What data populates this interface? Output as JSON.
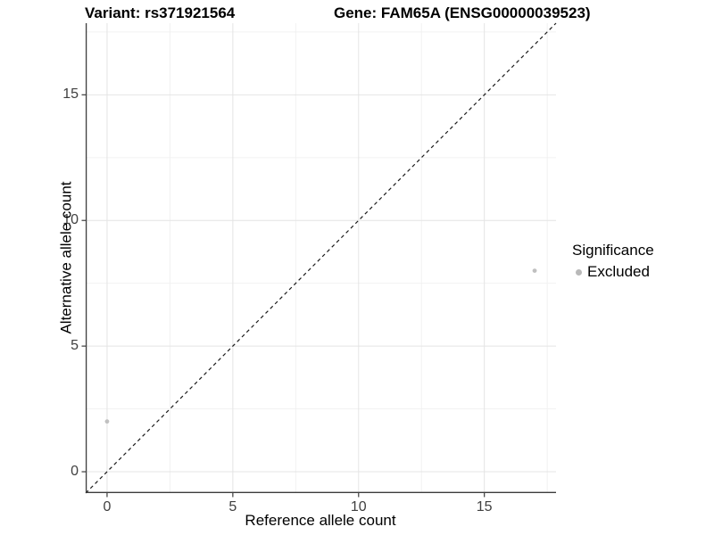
{
  "chart_data": {
    "type": "scatter",
    "titles": {
      "left": "Variant: rs371921564",
      "right": "Gene: FAM65A (ENSG00000039523)"
    },
    "xlabel": "Reference allele count",
    "ylabel": "Alternative allele count",
    "xlim": [
      -0.85,
      17.85
    ],
    "ylim": [
      -0.85,
      17.85
    ],
    "xticks": [
      0,
      5,
      10,
      15
    ],
    "yticks": [
      0,
      5,
      10,
      15
    ],
    "xminor": [
      2.5,
      7.5,
      12.5,
      17.5
    ],
    "yminor": [
      2.5,
      7.5,
      12.5,
      17.5
    ],
    "grid": "major+minor",
    "points": [
      {
        "x": 0,
        "y": 2,
        "series": "Excluded"
      },
      {
        "x": 17,
        "y": 8,
        "series": "Excluded"
      }
    ],
    "reference_line": {
      "slope": 1,
      "intercept": 0,
      "style": "dashed"
    },
    "legend": {
      "title": "Significance",
      "position": "right",
      "entries": [
        {
          "label": "Excluded",
          "color": "#b9b9b9"
        }
      ]
    },
    "colors": {
      "point": "#c0c0c0",
      "grid_major": "#e4e4e4",
      "grid_minor": "#f0f0f0",
      "axis_line": "#3c3c3c",
      "tick_mark": "#3c3c3c",
      "axis_text": "#404040",
      "reference_line": "#1a1a1a"
    }
  }
}
